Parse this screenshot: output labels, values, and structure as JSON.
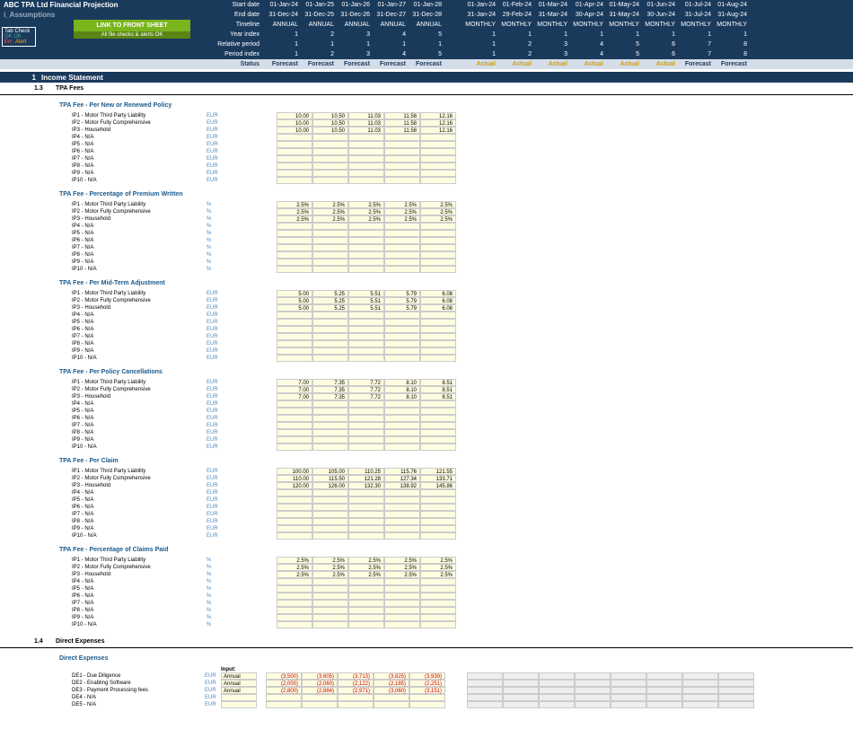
{
  "title": "ABC TPA Ltd Financial Projection",
  "subtitle": "i_Assumptions",
  "tab_check": {
    "header": "Tab Check",
    "ok1": "OK",
    "ok2": "OK",
    "err": "Err:",
    "alert": "Alert"
  },
  "link_btn": "LINK TO FRONT SHEET",
  "link_sub": "All file checks & alerts OK",
  "header_rows": [
    {
      "label": "Start date",
      "annual": [
        "01-Jan-24",
        "01-Jan-25",
        "01-Jan-26",
        "01-Jan-27",
        "01-Jan-28"
      ],
      "monthly": [
        "01-Jan-24",
        "01-Feb-24",
        "01-Mar-24",
        "01-Apr-24",
        "01-May-24",
        "01-Jun-24",
        "01-Jul-24",
        "01-Aug-24"
      ]
    },
    {
      "label": "End date",
      "annual": [
        "31-Dec-24",
        "31-Dec-25",
        "31-Dec-26",
        "31-Dec-27",
        "31-Dec-28"
      ],
      "monthly": [
        "31-Jan-24",
        "29-Feb-24",
        "31-Mar-24",
        "30-Apr-24",
        "31-May-24",
        "30-Jun-24",
        "31-Jul-24",
        "31-Aug-24"
      ]
    },
    {
      "label": "Timeline",
      "annual": [
        "ANNUAL",
        "ANNUAL",
        "ANNUAL",
        "ANNUAL",
        "ANNUAL"
      ],
      "monthly": [
        "MONTHLY",
        "MONTHLY",
        "MONTHLY",
        "MONTHLY",
        "MONTHLY",
        "MONTHLY",
        "MONTHLY",
        "MONTHLY"
      ]
    },
    {
      "label": "Year index",
      "annual": [
        "1",
        "2",
        "3",
        "4",
        "5"
      ],
      "monthly": [
        "1",
        "1",
        "1",
        "1",
        "1",
        "1",
        "1",
        "1"
      ]
    },
    {
      "label": "Relative period",
      "annual": [
        "1",
        "1",
        "1",
        "1",
        "1"
      ],
      "monthly": [
        "1",
        "2",
        "3",
        "4",
        "5",
        "6",
        "7",
        "8"
      ]
    },
    {
      "label": "Period index",
      "annual": [
        "1",
        "2",
        "3",
        "4",
        "5"
      ],
      "monthly": [
        "1",
        "2",
        "3",
        "4",
        "5",
        "6",
        "7",
        "8"
      ]
    }
  ],
  "status_label": "Status",
  "status_annual": [
    "Forecast",
    "Forecast",
    "Forecast",
    "Forecast",
    "Forecast"
  ],
  "status_monthly": [
    "Actual",
    "Actual",
    "Actual",
    "Actual",
    "Actual",
    "Actual",
    "Forecast",
    "Forecast"
  ],
  "section1": {
    "num": "1",
    "title": "Income Statement"
  },
  "sub13": {
    "num": "1.3",
    "title": "TPA Fees"
  },
  "sub14": {
    "num": "1.4",
    "title": "Direct Expenses"
  },
  "groups": [
    {
      "title": "TPA Fee - Per New or Renewed Policy",
      "unit": "EUR",
      "rows": [
        "IP1 - Motor Third Party Liability",
        "IP2 - Motor Fully Comprehensive",
        "IP3 - Household",
        "IP4 - N/A",
        "IP5 - N/A",
        "IP6 - N/A",
        "IP7 - N/A",
        "IP8 - N/A",
        "IP9 - N/A",
        "IP10 - N/A"
      ],
      "data": [
        [
          "10.00",
          "10.50",
          "11.03",
          "11.58",
          "12.16"
        ],
        [
          "10.00",
          "10.50",
          "11.03",
          "11.58",
          "12.16"
        ],
        [
          "10.00",
          "10.50",
          "11.03",
          "11.58",
          "12.16"
        ],
        [],
        [],
        [],
        [],
        [],
        [],
        []
      ]
    },
    {
      "title": "TPA Fee - Percentage of Premium Written",
      "unit": "%",
      "rows": [
        "IP1 - Motor Third Party Liability",
        "IP2 - Motor Fully Comprehensive",
        "IP3 - Household",
        "IP4 - N/A",
        "IP5 - N/A",
        "IP6 - N/A",
        "IP7 - N/A",
        "IP8 - N/A",
        "IP9 - N/A",
        "IP10 - N/A"
      ],
      "data": [
        [
          "2.5%",
          "2.5%",
          "2.5%",
          "2.5%",
          "2.5%"
        ],
        [
          "2.5%",
          "2.5%",
          "2.5%",
          "2.5%",
          "2.5%"
        ],
        [
          "2.5%",
          "2.5%",
          "2.5%",
          "2.5%",
          "2.5%"
        ],
        [],
        [],
        [],
        [],
        [],
        [],
        []
      ]
    },
    {
      "title": "TPA Fee - Per Mid-Term Adjustment",
      "unit": "EUR",
      "rows": [
        "IP1 - Motor Third Party Liability",
        "IP2 - Motor Fully Comprehensive",
        "IP3 - Household",
        "IP4 - N/A",
        "IP5 - N/A",
        "IP6 - N/A",
        "IP7 - N/A",
        "IP8 - N/A",
        "IP9 - N/A",
        "IP10 - N/A"
      ],
      "data": [
        [
          "5.00",
          "5.25",
          "5.51",
          "5.79",
          "6.08"
        ],
        [
          "5.00",
          "5.25",
          "5.51",
          "5.79",
          "6.08"
        ],
        [
          "5.00",
          "5.25",
          "5.51",
          "5.79",
          "6.08"
        ],
        [],
        [],
        [],
        [],
        [],
        [],
        []
      ]
    },
    {
      "title": "TPA Fee - Per Policy Cancellations",
      "unit": "EUR",
      "rows": [
        "IP1 - Motor Third Party Liability",
        "IP2 - Motor Fully Comprehensive",
        "IP3 - Household",
        "IP4 - N/A",
        "IP5 - N/A",
        "IP6 - N/A",
        "IP7 - N/A",
        "IP8 - N/A",
        "IP9 - N/A",
        "IP10 - N/A"
      ],
      "data": [
        [
          "7.00",
          "7.35",
          "7.72",
          "8.10",
          "8.51"
        ],
        [
          "7.00",
          "7.35",
          "7.72",
          "8.10",
          "8.51"
        ],
        [
          "7.00",
          "7.35",
          "7.72",
          "8.10",
          "8.51"
        ],
        [],
        [],
        [],
        [],
        [],
        [],
        []
      ]
    },
    {
      "title": "TPA Fee - Per Claim",
      "unit": "EUR",
      "rows": [
        "IP1 - Motor Third Party Liability",
        "IP2 - Motor Fully Comprehensive",
        "IP3 - Household",
        "IP4 - N/A",
        "IP5 - N/A",
        "IP6 - N/A",
        "IP7 - N/A",
        "IP8 - N/A",
        "IP9 - N/A",
        "IP10 - N/A"
      ],
      "data": [
        [
          "100.00",
          "105.00",
          "110.25",
          "115.76",
          "121.55"
        ],
        [
          "110.00",
          "115.50",
          "121.28",
          "127.34",
          "133.71"
        ],
        [
          "120.00",
          "126.00",
          "132.30",
          "138.92",
          "145.86"
        ],
        [],
        [],
        [],
        [],
        [],
        [],
        []
      ]
    },
    {
      "title": "TPA Fee - Percentage of Claims Paid",
      "unit": "%",
      "rows": [
        "IP1 - Motor Third Party Liability",
        "IP2 - Motor Fully Comprehensive",
        "IP3 - Household",
        "IP4 - N/A",
        "IP5 - N/A",
        "IP6 - N/A",
        "IP7 - N/A",
        "IP8 - N/A",
        "IP9 - N/A",
        "IP10 - N/A"
      ],
      "data": [
        [
          "2.5%",
          "2.5%",
          "2.5%",
          "2.5%",
          "2.5%"
        ],
        [
          "2.5%",
          "2.5%",
          "2.5%",
          "2.5%",
          "2.5%"
        ],
        [
          "2.5%",
          "2.5%",
          "2.5%",
          "2.5%",
          "2.5%"
        ],
        [],
        [],
        [],
        [],
        [],
        [],
        []
      ]
    }
  ],
  "expenses": {
    "title": "Direct Expenses",
    "input_label": "Input:",
    "rows": [
      {
        "label": "DE1 - Due Diligence",
        "unit": "EUR",
        "freq": "Annual",
        "data": [
          "(3,500)",
          "(3,605)",
          "(3,713)",
          "(3,825)",
          "(3,939)"
        ]
      },
      {
        "label": "DE2 - Enabling Software",
        "unit": "EUR",
        "freq": "Annual",
        "data": [
          "(2,000)",
          "(2,060)",
          "(2,122)",
          "(2,185)",
          "(2,251)"
        ]
      },
      {
        "label": "DE3 - Payment Processing fees",
        "unit": "EUR",
        "freq": "Annual",
        "data": [
          "(2,800)",
          "(2,884)",
          "(2,971)",
          "(3,060)",
          "(3,151)"
        ]
      },
      {
        "label": "DE4 - N/A",
        "unit": "EUR",
        "freq": "",
        "data": []
      },
      {
        "label": "DE5 - N/A",
        "unit": "EUR",
        "freq": "",
        "data": []
      }
    ]
  }
}
